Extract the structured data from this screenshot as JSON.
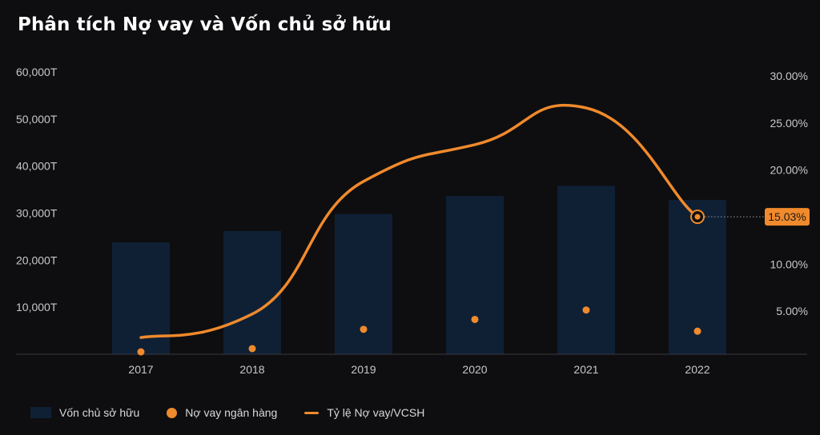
{
  "title": "Phân tích Nợ vay và Vốn chủ sở hữu",
  "colors": {
    "background": "#0e0e10",
    "bar": "#0f2035",
    "accent": "#f08a2c",
    "axis_text": "#c8c8c8"
  },
  "chart_data": {
    "type": "bar",
    "categories": [
      "2017",
      "2018",
      "2019",
      "2020",
      "2021",
      "2022"
    ],
    "y_left": {
      "ticks": [
        10000,
        20000,
        30000,
        40000,
        50000,
        60000
      ],
      "tick_labels": [
        "10,000T",
        "20,000T",
        "30,000T",
        "40,000T",
        "50,000T",
        "60,000T"
      ],
      "ylim": [
        0,
        60000
      ]
    },
    "y_right": {
      "ticks": [
        5,
        10,
        15,
        20,
        25,
        30
      ],
      "tick_labels": [
        "5.00%",
        "10.00%",
        "15.00%",
        "20.00%",
        "25.00%",
        "30.00%"
      ],
      "ylim": [
        0,
        30
      ]
    },
    "series": [
      {
        "name": "Vốn chủ sở hữu",
        "type": "bar",
        "axis": "left",
        "values": [
          23800,
          26200,
          29800,
          33600,
          35800,
          32800
        ]
      },
      {
        "name": "Nợ vay ngân hàng",
        "type": "scatter",
        "axis": "left",
        "values": [
          500,
          1200,
          5300,
          7400,
          9400,
          4900
        ]
      },
      {
        "name": "Tỷ lệ Nợ vay/VCSH",
        "type": "line",
        "axis": "right",
        "values": [
          2.2,
          4.7,
          18.8,
          22.7,
          26.6,
          15.03
        ]
      }
    ],
    "highlight": {
      "category": "2022",
      "series": "Tỷ lệ Nợ vay/VCSH",
      "label": "15.03%"
    },
    "legend_position": "bottom-left",
    "grid": false
  },
  "legend": [
    {
      "label": "Vốn chủ sở hữu",
      "swatch": "bar"
    },
    {
      "label": "Nợ vay ngân hàng",
      "swatch": "dot"
    },
    {
      "label": "Tỷ lệ Nợ vay/VCSH",
      "swatch": "line"
    }
  ]
}
